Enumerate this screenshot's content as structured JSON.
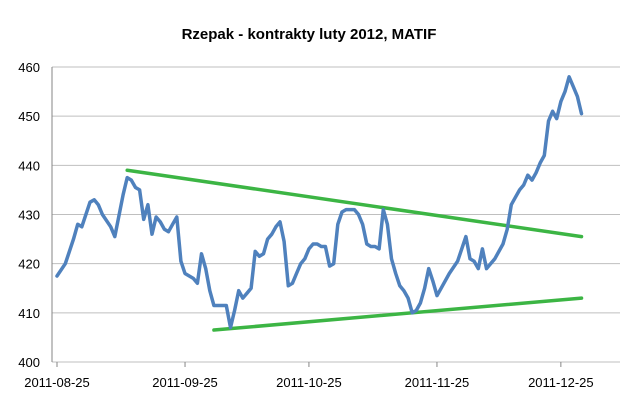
{
  "chart_data": {
    "type": "line",
    "title": "Rzepak - kontrakty luty 2012, MATIF",
    "xlabel": "",
    "ylabel": "",
    "ylim": [
      400,
      460
    ],
    "y_ticks": [
      460,
      450,
      440,
      430,
      420,
      410,
      400
    ],
    "x_ticks": [
      "2011-08-25",
      "2011-09-25",
      "2011-10-25",
      "2011-11-25",
      "2011-12-25"
    ],
    "grid": {
      "horizontal": true,
      "vertical": false
    },
    "legend": "none",
    "colors": {
      "price": "#4F81BD",
      "trendlines": "#3CB544",
      "grid": "#BFBFBF"
    },
    "series": [
      {
        "values": [
          {
            "x": "2011-08-25",
            "y": 417.5
          },
          {
            "x": "2011-08-27",
            "y": 420
          },
          {
            "x": "2011-08-29",
            "y": 425
          },
          {
            "x": "2011-08-30",
            "y": 428
          },
          {
            "x": "2011-08-31",
            "y": 427.5
          },
          {
            "x": "2011-09-02",
            "y": 432.5
          },
          {
            "x": "2011-09-03",
            "y": 433
          },
          {
            "x": "2011-09-04",
            "y": 432
          },
          {
            "x": "2011-09-05",
            "y": 430
          },
          {
            "x": "2011-09-07",
            "y": 427.5
          },
          {
            "x": "2011-09-08",
            "y": 425.5
          },
          {
            "x": "2011-09-10",
            "y": 434
          },
          {
            "x": "2011-09-11",
            "y": 437.5
          },
          {
            "x": "2011-09-12",
            "y": 437
          },
          {
            "x": "2011-09-13",
            "y": 435.5
          },
          {
            "x": "2011-09-14",
            "y": 435
          },
          {
            "x": "2011-09-15",
            "y": 429
          },
          {
            "x": "2011-09-16",
            "y": 432
          },
          {
            "x": "2011-09-17",
            "y": 426
          },
          {
            "x": "2011-09-18",
            "y": 429.5
          },
          {
            "x": "2011-09-19",
            "y": 428.5
          },
          {
            "x": "2011-09-20",
            "y": 427
          },
          {
            "x": "2011-09-21",
            "y": 426.5
          },
          {
            "x": "2011-09-22",
            "y": 428
          },
          {
            "x": "2011-09-23",
            "y": 429.5
          },
          {
            "x": "2011-09-24",
            "y": 420.5
          },
          {
            "x": "2011-09-25",
            "y": 418
          },
          {
            "x": "2011-09-27",
            "y": 417
          },
          {
            "x": "2011-09-28",
            "y": 416
          },
          {
            "x": "2011-09-29",
            "y": 422
          },
          {
            "x": "2011-09-30",
            "y": 419
          },
          {
            "x": "2011-10-01",
            "y": 414.5
          },
          {
            "x": "2011-10-02",
            "y": 411.5
          },
          {
            "x": "2011-10-03",
            "y": 411.5
          },
          {
            "x": "2011-10-04",
            "y": 411.5
          },
          {
            "x": "2011-10-05",
            "y": 411.5
          },
          {
            "x": "2011-10-06",
            "y": 407
          },
          {
            "x": "2011-10-07",
            "y": 410.5
          },
          {
            "x": "2011-10-08",
            "y": 414.5
          },
          {
            "x": "2011-10-09",
            "y": 413
          },
          {
            "x": "2011-10-10",
            "y": 414
          },
          {
            "x": "2011-10-11",
            "y": 415
          },
          {
            "x": "2011-10-12",
            "y": 422.5
          },
          {
            "x": "2011-10-13",
            "y": 421.5
          },
          {
            "x": "2011-10-14",
            "y": 422
          },
          {
            "x": "2011-10-15",
            "y": 425
          },
          {
            "x": "2011-10-16",
            "y": 426
          },
          {
            "x": "2011-10-17",
            "y": 427.5
          },
          {
            "x": "2011-10-18",
            "y": 428.5
          },
          {
            "x": "2011-10-19",
            "y": 424.5
          },
          {
            "x": "2011-10-20",
            "y": 415.5
          },
          {
            "x": "2011-10-21",
            "y": 416
          },
          {
            "x": "2011-10-22",
            "y": 418
          },
          {
            "x": "2011-10-23",
            "y": 420
          },
          {
            "x": "2011-10-24",
            "y": 421
          },
          {
            "x": "2011-10-25",
            "y": 423
          },
          {
            "x": "2011-10-26",
            "y": 424
          },
          {
            "x": "2011-10-27",
            "y": 424
          },
          {
            "x": "2011-10-28",
            "y": 423.5
          },
          {
            "x": "2011-10-29",
            "y": 423.5
          },
          {
            "x": "2011-10-30",
            "y": 419.5
          },
          {
            "x": "2011-10-31",
            "y": 420
          },
          {
            "x": "2011-11-01",
            "y": 428
          },
          {
            "x": "2011-11-02",
            "y": 430.5
          },
          {
            "x": "2011-11-03",
            "y": 431
          },
          {
            "x": "2011-11-04",
            "y": 431
          },
          {
            "x": "2011-11-05",
            "y": 431
          },
          {
            "x": "2011-11-06",
            "y": 430
          },
          {
            "x": "2011-11-07",
            "y": 428
          },
          {
            "x": "2011-11-08",
            "y": 424
          },
          {
            "x": "2011-11-09",
            "y": 423.5
          },
          {
            "x": "2011-11-10",
            "y": 423.5
          },
          {
            "x": "2011-11-11",
            "y": 423
          },
          {
            "x": "2011-11-12",
            "y": 431
          },
          {
            "x": "2011-11-13",
            "y": 428
          },
          {
            "x": "2011-11-14",
            "y": 421
          },
          {
            "x": "2011-11-15",
            "y": 418
          },
          {
            "x": "2011-11-16",
            "y": 415.5
          },
          {
            "x": "2011-11-17",
            "y": 414.5
          },
          {
            "x": "2011-11-18",
            "y": 413
          },
          {
            "x": "2011-11-19",
            "y": 410
          },
          {
            "x": "2011-11-20",
            "y": 410.5
          },
          {
            "x": "2011-11-21",
            "y": 412
          },
          {
            "x": "2011-11-22",
            "y": 415
          },
          {
            "x": "2011-11-23",
            "y": 419
          },
          {
            "x": "2011-11-24",
            "y": 416.5
          },
          {
            "x": "2011-11-25",
            "y": 413.5
          },
          {
            "x": "2011-11-26",
            "y": 415
          },
          {
            "x": "2011-11-28",
            "y": 418
          },
          {
            "x": "2011-11-30",
            "y": 420.5
          },
          {
            "x": "2011-12-02",
            "y": 425.5
          },
          {
            "x": "2011-12-03",
            "y": 421
          },
          {
            "x": "2011-12-04",
            "y": 420.5
          },
          {
            "x": "2011-12-05",
            "y": 419
          },
          {
            "x": "2011-12-06",
            "y": 423
          },
          {
            "x": "2011-12-07",
            "y": 419
          },
          {
            "x": "2011-12-08",
            "y": 420
          },
          {
            "x": "2011-12-09",
            "y": 421
          },
          {
            "x": "2011-12-10",
            "y": 422.5
          },
          {
            "x": "2011-12-11",
            "y": 424
          },
          {
            "x": "2011-12-12",
            "y": 427
          },
          {
            "x": "2011-12-13",
            "y": 432
          },
          {
            "x": "2011-12-14",
            "y": 433.5
          },
          {
            "x": "2011-12-15",
            "y": 435
          },
          {
            "x": "2011-12-16",
            "y": 436
          },
          {
            "x": "2011-12-17",
            "y": 438
          },
          {
            "x": "2011-12-18",
            "y": 437
          },
          {
            "x": "2011-12-19",
            "y": 438.5
          },
          {
            "x": "2011-12-20",
            "y": 440.5
          },
          {
            "x": "2011-12-21",
            "y": 442
          },
          {
            "x": "2011-12-22",
            "y": 449
          },
          {
            "x": "2011-12-23",
            "y": 451
          },
          {
            "x": "2011-12-24",
            "y": 449.5
          },
          {
            "x": "2011-12-25",
            "y": 453
          },
          {
            "x": "2011-12-26",
            "y": 455
          },
          {
            "x": "2011-12-27",
            "y": 458
          },
          {
            "x": "2011-12-28",
            "y": 456
          },
          {
            "x": "2011-12-29",
            "y": 454
          },
          {
            "x": "2011-12-30",
            "y": 450.5
          }
        ]
      }
    ],
    "trendlines": [
      {
        "from": {
          "x": "2011-09-11",
          "y": 439
        },
        "to": {
          "x": "2011-12-30",
          "y": 425.5
        }
      },
      {
        "from": {
          "x": "2011-10-02",
          "y": 406.5
        },
        "to": {
          "x": "2011-12-30",
          "y": 413
        }
      }
    ]
  }
}
